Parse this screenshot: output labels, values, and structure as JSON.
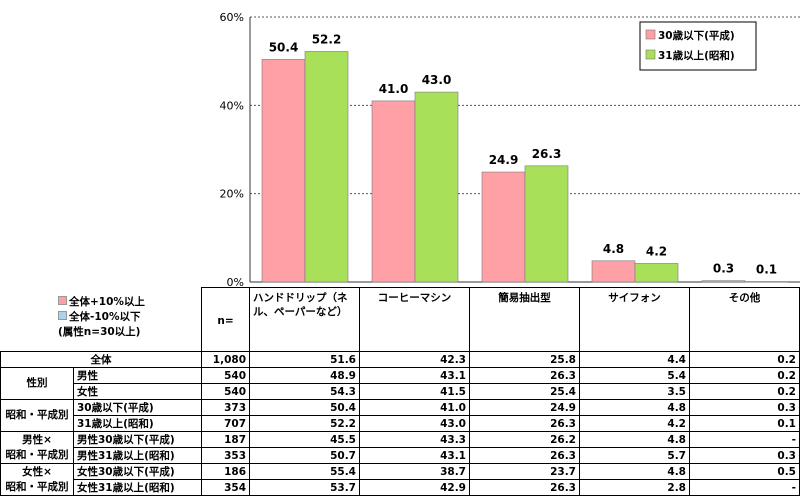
{
  "chart_data": {
    "type": "bar",
    "categories": [
      "ハンドドリップ（ネル、ペーパーなど）",
      "コーヒーマシン",
      "簡易抽出型",
      "サイフォン",
      "その他"
    ],
    "series": [
      {
        "name": "30歳以下(平成)",
        "color": "#ff9fa6",
        "values": [
          50.4,
          41.0,
          24.9,
          4.8,
          0.3
        ]
      },
      {
        "name": "31歳以上(昭和)",
        "color": "#a9e05a",
        "values": [
          52.2,
          43.0,
          26.3,
          4.2,
          0.1
        ]
      }
    ],
    "ylim": [
      0,
      60
    ],
    "yticks": [
      "0%",
      "20%",
      "40%",
      "60%"
    ],
    "ytick_values": [
      0,
      20,
      40,
      60
    ],
    "grid": true,
    "legend_position": "top-right"
  },
  "notes": {
    "up": "全体+10%以上",
    "down": "全体-10%以下",
    "base": "(属性n=30以上)",
    "up_color": "#ff9fa6",
    "down_color": "#a8d4f0"
  },
  "table": {
    "n_label": "n=",
    "headers": [
      "ハンドドリップ（ネル、ペーパーなど）",
      "コーヒーマシン",
      "簡易抽出型",
      "サイフォン",
      "その他"
    ],
    "header_text": [
      "ハンドドリップ（ネル、ペーパーなど）",
      "コーヒーマシン",
      "簡易抽出型",
      "サイフォン",
      "その他"
    ],
    "rows": [
      {
        "group": "全体",
        "label": "",
        "n": "1,080",
        "values": [
          "51.6",
          "42.3",
          "25.8",
          "4.4",
          "0.2"
        ]
      },
      {
        "group": "性別",
        "label": "男性",
        "n": "540",
        "values": [
          "48.9",
          "43.1",
          "26.3",
          "5.4",
          "0.2"
        ]
      },
      {
        "group": "",
        "label": "女性",
        "n": "540",
        "values": [
          "54.3",
          "41.5",
          "25.4",
          "3.5",
          "0.2"
        ]
      },
      {
        "group": "昭和・平成別",
        "label": "30歳以下(平成)",
        "n": "373",
        "values": [
          "50.4",
          "41.0",
          "24.9",
          "4.8",
          "0.3"
        ]
      },
      {
        "group": "",
        "label": "31歳以上(昭和)",
        "n": "707",
        "values": [
          "52.2",
          "43.0",
          "26.3",
          "4.2",
          "0.1"
        ]
      },
      {
        "group": "男性×",
        "label": "男性30歳以下(平成)",
        "n": "187",
        "values": [
          "45.5",
          "43.3",
          "26.2",
          "4.8",
          "-"
        ]
      },
      {
        "group": "昭和・平成別",
        "label": "男性31歳以上(昭和)",
        "n": "353",
        "values": [
          "50.7",
          "43.1",
          "26.3",
          "5.7",
          "0.3"
        ]
      },
      {
        "group": "女性×",
        "label": "女性30歳以下(平成)",
        "n": "186",
        "values": [
          "55.4",
          "38.7",
          "23.7",
          "4.8",
          "0.5"
        ]
      },
      {
        "group": "昭和・平成別",
        "label": "女性31歳以上(昭和)",
        "n": "354",
        "values": [
          "53.7",
          "42.9",
          "26.3",
          "2.8",
          "-"
        ]
      }
    ]
  }
}
